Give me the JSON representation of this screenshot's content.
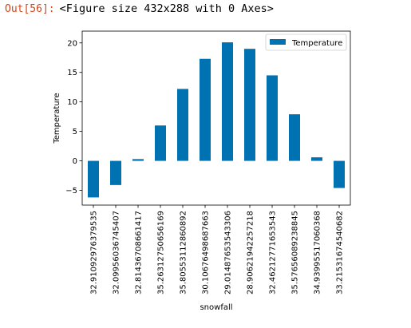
{
  "cell": {
    "prompt": "Out[56]:",
    "text": "<Figure size 432x288 with 0 Axes>"
  },
  "chart_data": {
    "type": "bar",
    "xlabel": "snowfall",
    "ylabel": "Temperature",
    "categories": [
      "32.91092976379535",
      "32.09956036745407",
      "32.81436708661417",
      "35.26312750656169",
      "35.80553112860892",
      "30.10676498687663",
      "29.01487653543306",
      "28.90621942257218",
      "32.46212771653543",
      "35.57656089238845",
      "34.93995517060368",
      "33.21531674540682"
    ],
    "series": [
      {
        "name": "Temperature",
        "values": [
          -6.2,
          -4.1,
          0.3,
          6.0,
          12.2,
          17.3,
          20.1,
          19.0,
          14.5,
          7.9,
          0.6,
          -4.6
        ]
      }
    ],
    "ylim": [
      -7.5,
      22.0
    ],
    "yticks": [
      -5,
      0,
      5,
      10,
      15,
      20
    ],
    "color": "#0072B2",
    "legend": "top-right",
    "grid": false
  }
}
